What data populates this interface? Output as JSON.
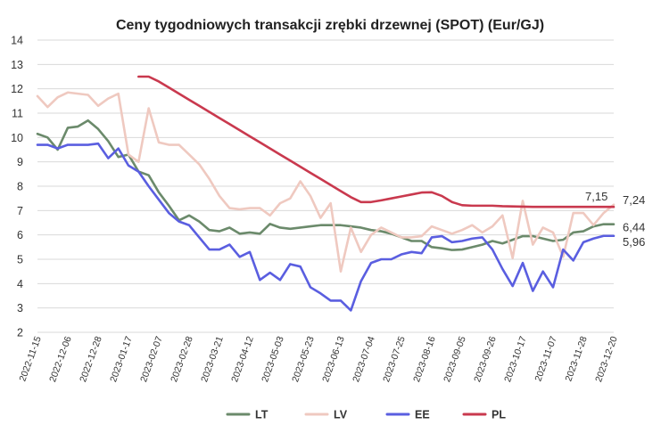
{
  "chart_data": {
    "type": "line",
    "title": "Ceny tygodniowych transakcji zrębki drzewnej (SPOT) (Eur/GJ)",
    "xlabel": "",
    "ylabel": "",
    "ylim": [
      2,
      14
    ],
    "yticks": [
      "2",
      "3",
      "4",
      "5",
      "6",
      "7",
      "8",
      "9",
      "10",
      "11",
      "12",
      "13",
      "14"
    ],
    "grid": true,
    "legend": "bottom",
    "x": [
      "2022-11-15",
      "2022-11-22",
      "2022-11-29",
      "2022-12-06",
      "2022-12-13",
      "2022-12-20",
      "2022-12-28",
      "2023-01-03",
      "2023-01-10",
      "2023-01-17",
      "2023-01-24",
      "2023-01-31",
      "2023-02-07",
      "2023-02-14",
      "2023-02-21",
      "2023-02-28",
      "2023-03-07",
      "2023-03-14",
      "2023-03-21",
      "2023-03-28",
      "2023-04-04",
      "2023-04-12",
      "2023-04-19",
      "2023-04-26",
      "2023-05-03",
      "2023-05-10",
      "2023-05-16",
      "2023-05-23",
      "2023-05-30",
      "2023-06-06",
      "2023-06-13",
      "2023-06-20",
      "2023-06-27",
      "2023-07-04",
      "2023-07-11",
      "2023-07-18",
      "2023-07-25",
      "2023-08-01",
      "2023-08-08",
      "2023-08-16",
      "2023-08-22",
      "2023-08-29",
      "2023-09-05",
      "2023-09-12",
      "2023-09-19",
      "2023-09-26",
      "2023-10-03",
      "2023-10-10",
      "2023-10-17",
      "2023-10-24",
      "2023-10-31",
      "2023-11-07",
      "2023-11-14",
      "2023-11-21",
      "2023-11-28",
      "2023-12-05",
      "2023-12-12",
      "2023-12-20"
    ],
    "x_tick_labels": [
      "2022-11-15",
      "2022-12-06",
      "2022-12-28",
      "2023-01-17",
      "2023-02-07",
      "2023-02-28",
      "2023-03-21",
      "2023-04-12",
      "2023-05-03",
      "2023-05-23",
      "2023-06-13",
      "2023-07-04",
      "2023-07-25",
      "2023-08-16",
      "2023-09-05",
      "2023-09-26",
      "2023-10-17",
      "2023-11-07",
      "2023-11-28",
      "2023-12-20"
    ],
    "series": [
      {
        "name": "LT",
        "color": "#6b8a6b",
        "values": [
          10.15,
          10.0,
          9.5,
          10.4,
          10.45,
          10.7,
          10.35,
          9.85,
          9.2,
          9.3,
          8.6,
          8.45,
          7.75,
          7.2,
          6.6,
          6.8,
          6.55,
          6.2,
          6.15,
          6.3,
          6.05,
          6.1,
          6.05,
          6.45,
          6.3,
          6.25,
          6.3,
          6.35,
          6.4,
          6.4,
          6.4,
          6.35,
          6.3,
          6.2,
          6.15,
          6.05,
          5.9,
          5.75,
          5.75,
          5.5,
          5.45,
          5.38,
          5.4,
          5.5,
          5.6,
          5.75,
          5.65,
          5.8,
          5.95,
          5.95,
          5.85,
          5.75,
          5.8,
          6.1,
          6.15,
          6.35,
          6.44,
          6.44
        ]
      },
      {
        "name": "LV",
        "color": "#efc9c0",
        "values": [
          11.7,
          11.25,
          11.65,
          11.85,
          11.8,
          11.75,
          11.3,
          11.6,
          11.8,
          9.3,
          9.0,
          11.2,
          9.8,
          9.7,
          9.7,
          9.3,
          8.9,
          8.3,
          7.6,
          7.1,
          7.05,
          7.1,
          7.1,
          6.8,
          7.3,
          7.5,
          8.2,
          7.6,
          6.7,
          7.3,
          4.5,
          6.3,
          5.3,
          6.0,
          6.3,
          6.1,
          5.9,
          5.9,
          5.95,
          6.35,
          6.2,
          6.05,
          6.2,
          6.4,
          6.1,
          6.35,
          6.8,
          5.05,
          7.4,
          5.6,
          6.3,
          6.1,
          5.1,
          6.9,
          6.9,
          6.4,
          6.9,
          7.24
        ]
      },
      {
        "name": "EE",
        "color": "#5a5ee0",
        "values": [
          9.7,
          9.7,
          9.55,
          9.7,
          9.7,
          9.7,
          9.75,
          9.15,
          9.55,
          8.85,
          8.6,
          8.0,
          7.45,
          6.9,
          6.55,
          6.4,
          5.9,
          5.4,
          5.4,
          5.6,
          5.1,
          5.3,
          4.15,
          4.45,
          4.15,
          4.8,
          4.7,
          3.85,
          3.6,
          3.3,
          3.3,
          2.9,
          4.1,
          4.85,
          5.0,
          5.0,
          5.2,
          5.3,
          5.25,
          5.9,
          5.95,
          5.7,
          5.75,
          5.85,
          5.9,
          5.4,
          4.6,
          3.9,
          4.85,
          3.7,
          4.5,
          3.85,
          5.4,
          4.95,
          5.7,
          5.85,
          5.96,
          5.96
        ]
      },
      {
        "name": "PL",
        "color": "#c9394e",
        "values": [
          null,
          null,
          null,
          null,
          null,
          null,
          null,
          null,
          null,
          null,
          12.5,
          12.5,
          12.3,
          12.05,
          11.8,
          11.55,
          11.3,
          11.05,
          10.8,
          10.55,
          10.3,
          10.05,
          9.8,
          9.55,
          9.3,
          9.05,
          8.8,
          8.55,
          8.3,
          8.05,
          7.8,
          7.55,
          7.35,
          7.35,
          7.42,
          7.5,
          7.58,
          7.66,
          7.74,
          7.75,
          7.6,
          7.35,
          7.22,
          7.2,
          7.2,
          7.2,
          7.18,
          7.17,
          7.16,
          7.15,
          7.15,
          7.15,
          7.15,
          7.15,
          7.15,
          7.15,
          7.15,
          7.15
        ]
      }
    ],
    "end_labels": [
      {
        "series": "PL",
        "text": "7,15"
      },
      {
        "series": "LV",
        "text": "7,24"
      },
      {
        "series": "LT",
        "text": "6,44"
      },
      {
        "series": "EE",
        "text": "5,96"
      }
    ]
  }
}
